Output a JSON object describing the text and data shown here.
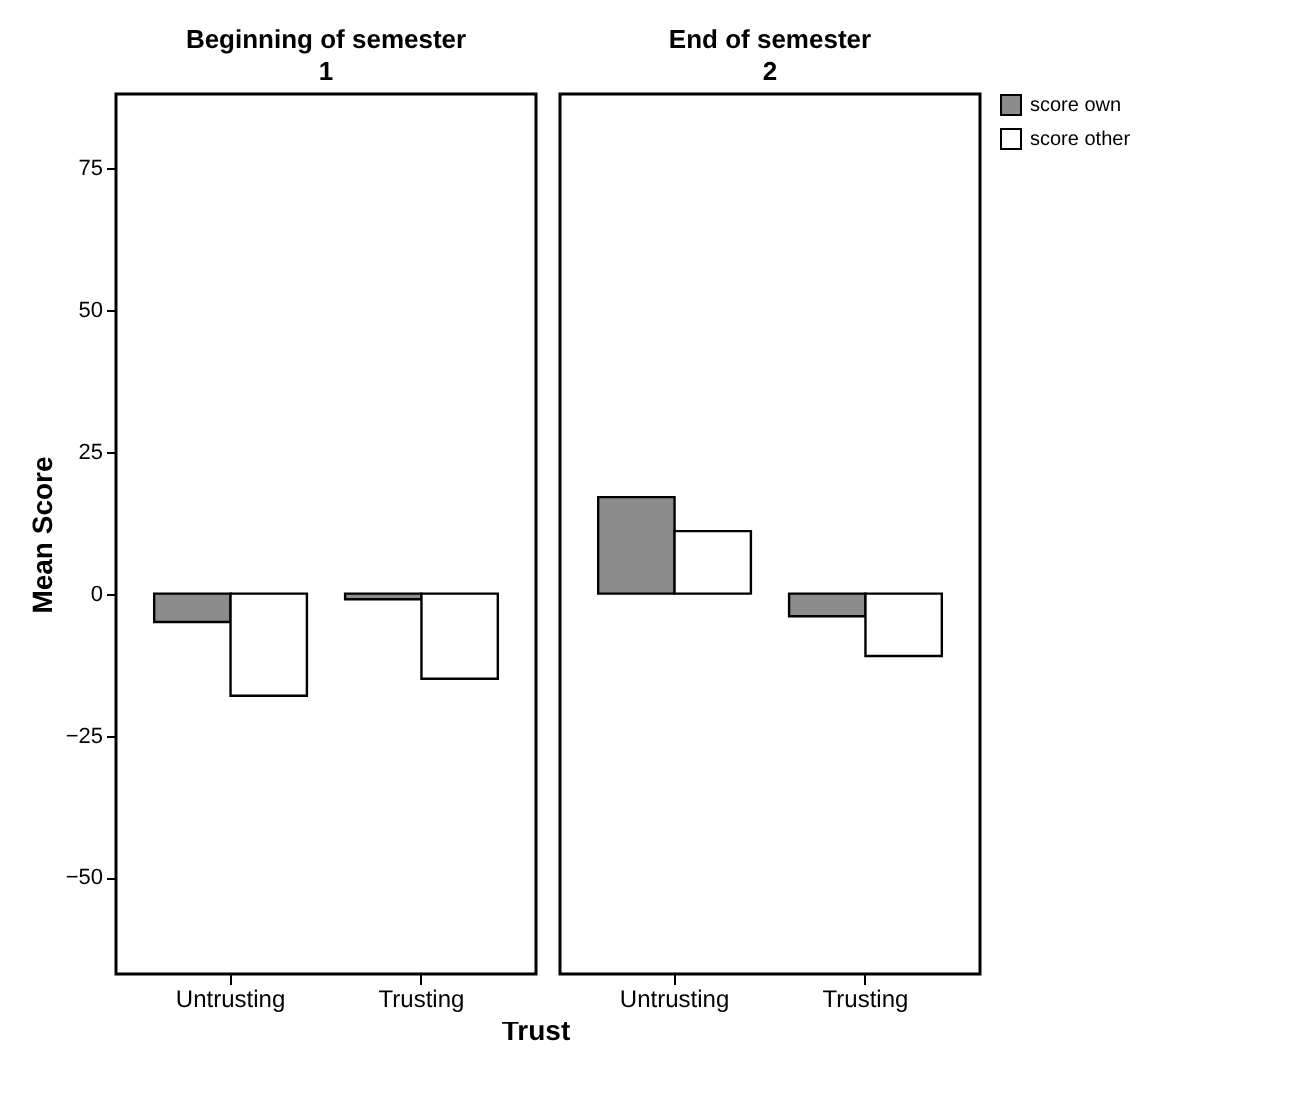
{
  "chart_data": [
    {
      "type": "bar",
      "title": "Beginning of semester",
      "subtitle": "1",
      "xlabel": "Trust",
      "ylabel": "Mean Score",
      "categories": [
        "Untrusting",
        "Trusting"
      ],
      "series": [
        {
          "color": "#8c8c8c",
          "values": [
            -5,
            -1
          ]
        },
        {
          "color": "#ffffff",
          "values": [
            -18,
            -15
          ]
        }
      ],
      "ylim": [
        -67,
        88
      ],
      "yticks": [
        -50,
        -25,
        0,
        25,
        50,
        75
      ],
      "grid": false
    },
    {
      "type": "bar",
      "title": "End of semester",
      "subtitle": "2",
      "categories": [
        "Untrusting",
        "Trusting"
      ],
      "series": [
        {
          "name": "score own",
          "color": "#8c8c8c",
          "values": [
            17,
            -4
          ]
        },
        {
          "name": "score other",
          "color": "#ffffff",
          "values": [
            11,
            -11
          ]
        }
      ],
      "ylim": [
        -67,
        88
      ],
      "yticks": [
        -50,
        -25,
        0,
        25,
        50,
        75
      ],
      "grid": false,
      "legend": "top right",
      "tick_labels": "x"
    }
  ]
}
